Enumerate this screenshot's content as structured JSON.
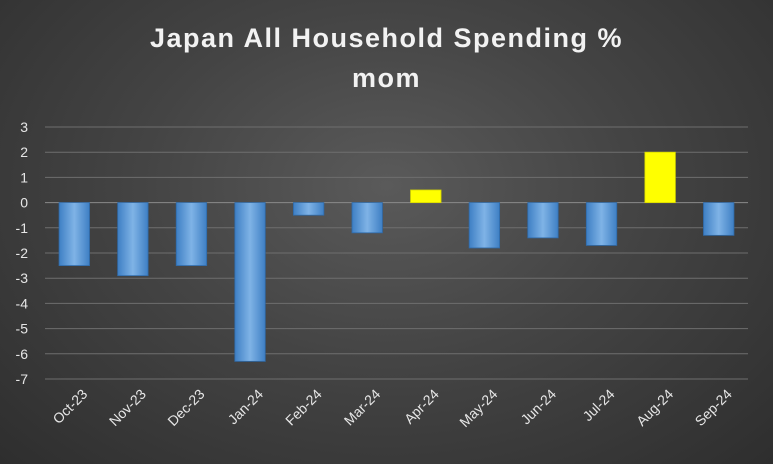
{
  "chart_data": {
    "type": "bar",
    "title_line1": "Japan All Household Spending %",
    "title_line2": "mom",
    "categories": [
      "Oct-23",
      "Nov-23",
      "Dec-23",
      "Jan-24",
      "Feb-24",
      "Mar-24",
      "Apr-24",
      "May-24",
      "Jun-24",
      "Jul-24",
      "Aug-24",
      "Sep-24"
    ],
    "values": [
      -2.5,
      -2.9,
      -2.5,
      -6.3,
      -0.5,
      -1.2,
      0.5,
      -1.8,
      -1.4,
      -1.7,
      2.0,
      -1.3
    ],
    "ylim": [
      -7,
      3
    ],
    "yticks": [
      3,
      2,
      1,
      0,
      -1,
      -2,
      -3,
      -4,
      -5,
      -6,
      -7
    ],
    "grid": true,
    "colors": {
      "negative": "#5b9bd5",
      "positive": "#ffff00",
      "grid": "#6e6e6e",
      "text": "#e6e6e6"
    }
  }
}
